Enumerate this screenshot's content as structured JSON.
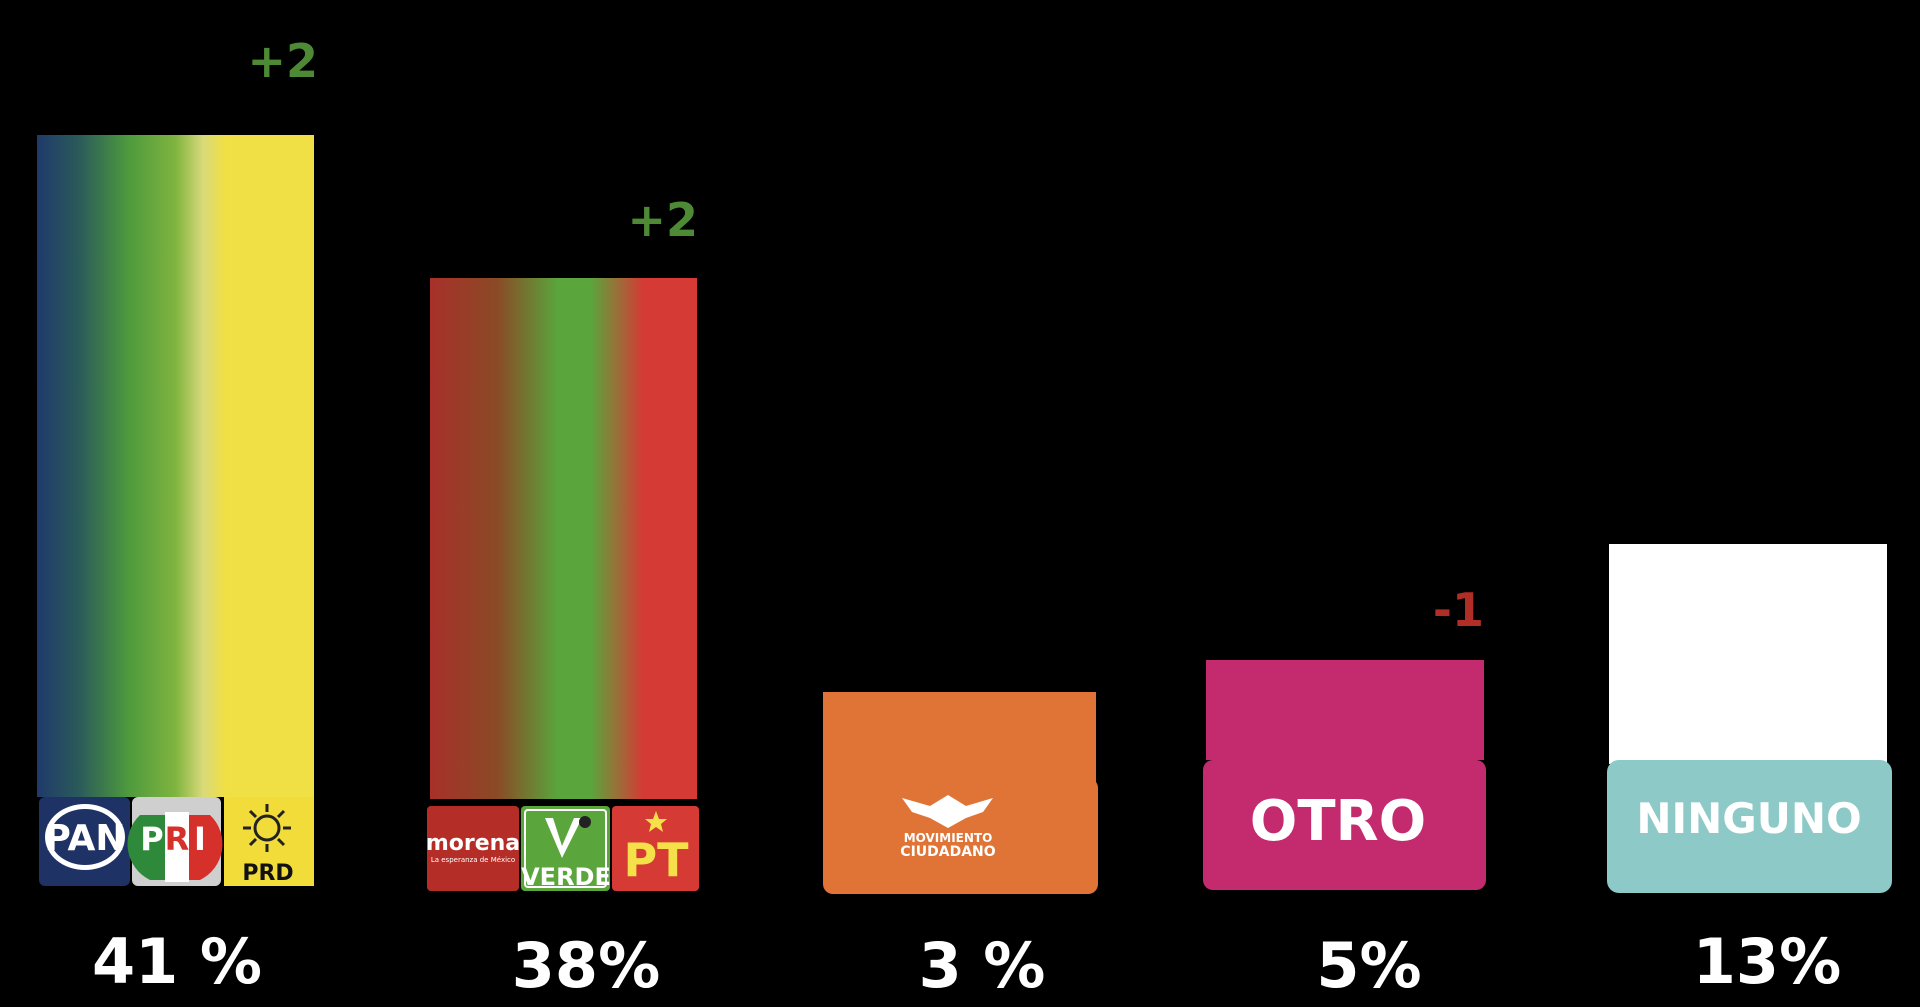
{
  "chart_data": {
    "type": "bar",
    "categories": [
      "PAN PRI PRD",
      "morena VERDE PT",
      "MOVIMIENTO CIUDADANO",
      "OTRO",
      "NINGUNO"
    ],
    "values": [
      41,
      38,
      3,
      5,
      13
    ],
    "value_labels": [
      "41 %",
      "38%",
      "3 %",
      "5%",
      "13%"
    ],
    "changes": [
      "+2",
      "+2",
      "",
      "-1",
      ""
    ],
    "colors": {
      "coalition_a": [
        "#1f3a6b",
        "#4e9a3d",
        "#f0df45"
      ],
      "coalition_b": [
        "#a8302a",
        "#5aa63c",
        "#d63a35"
      ],
      "mc": "#e07436",
      "otro": "#c42a6e",
      "ninguno_bar": "#ffffff",
      "ninguno_badge": "#8cc9c7",
      "positive_change": "#4e8a35",
      "negative_change": "#b12e27",
      "pan_blue": "#1e3266",
      "pri_green": "#2e8a3a",
      "pri_red": "#d5302a",
      "prd_yellow": "#f2dc3a",
      "morena_red": "#b42d26",
      "verde_green": "#5aa63c",
      "pt_red": "#d63a35"
    },
    "logos": {
      "pan": "PAN",
      "pri": [
        "P",
        "R",
        "I"
      ],
      "prd": "PRD",
      "morena_name": "morena",
      "morena_tagline": "La esperanza de México",
      "verde": "VERDE",
      "pt": "PT",
      "mc_line1": "MOVIMIENTO",
      "mc_line2": "CIUDADANO",
      "otro": "OTRO",
      "ninguno": "NINGUNO"
    },
    "icons": [
      "pan-logo-icon",
      "pri-logo-icon",
      "prd-sun-icon",
      "verde-toucan-icon",
      "pt-star-icon",
      "mc-eagle-icon"
    ]
  }
}
